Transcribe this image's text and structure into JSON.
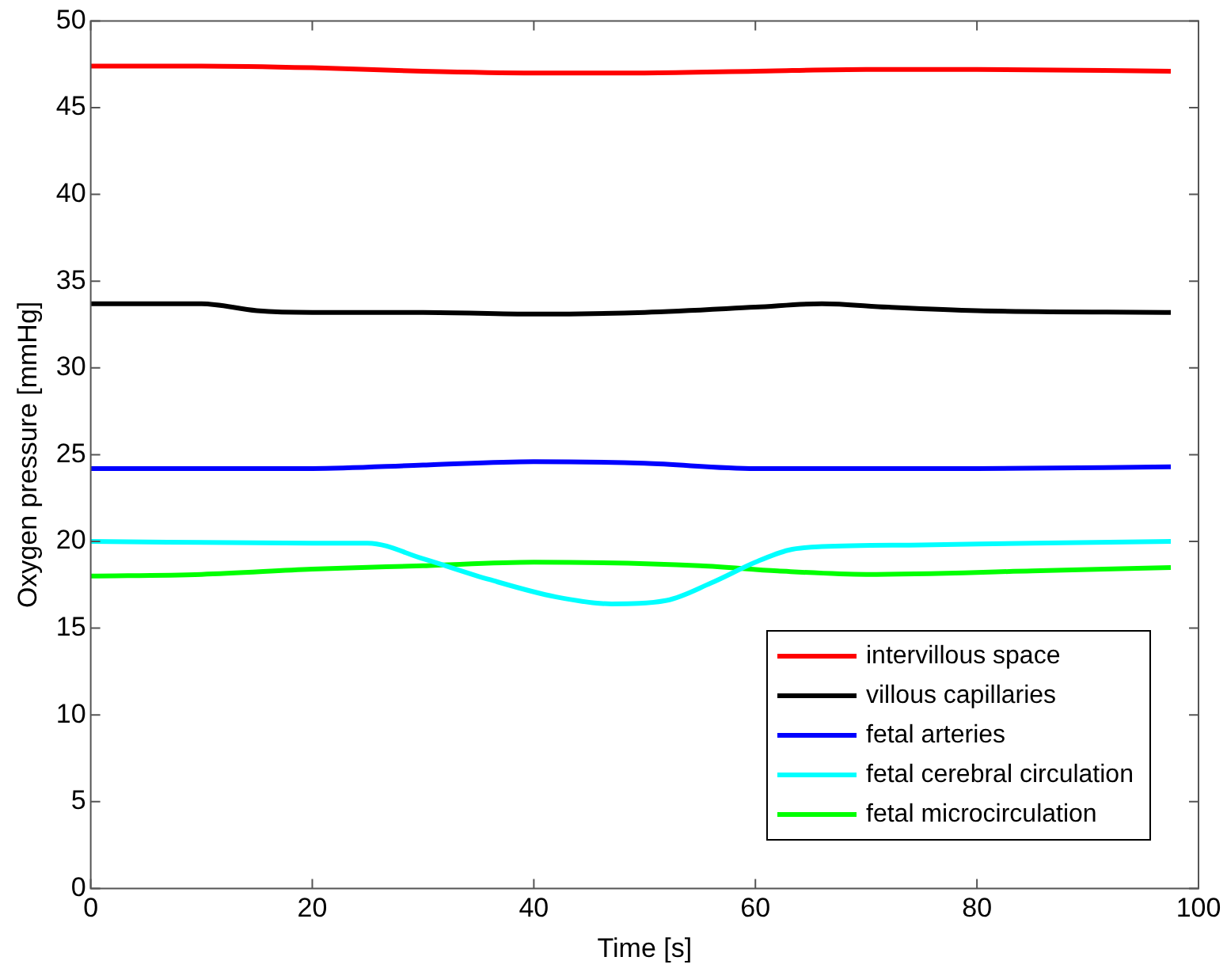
{
  "chart_data": {
    "type": "line",
    "xlabel": "Time [s]",
    "ylabel": "Oxygen pressure [mmHg]",
    "xlim": [
      0,
      100
    ],
    "xticks": [
      0,
      20,
      40,
      60,
      80,
      100
    ],
    "ylim": [
      0,
      50
    ],
    "yticks": [
      0,
      5,
      10,
      15,
      20,
      25,
      30,
      35,
      40,
      45,
      50
    ],
    "grid": false,
    "legend": "bottom right",
    "marker": "none",
    "line_style": "solid",
    "series": [
      {
        "name": "intervillous space",
        "color": "#ff0000",
        "x": [
          0,
          10,
          20,
          30,
          40,
          50,
          60,
          70,
          80,
          97.5
        ],
        "values": [
          47.4,
          47.4,
          47.3,
          47.1,
          47.0,
          47.0,
          47.1,
          47.2,
          47.2,
          47.1
        ]
      },
      {
        "name": "villous capillaries",
        "color": "#000000",
        "x": [
          0,
          10,
          15,
          20,
          30,
          40,
          50,
          60,
          66,
          72,
          80,
          97.5
        ],
        "values": [
          33.7,
          33.7,
          33.3,
          33.2,
          33.2,
          33.1,
          33.2,
          33.5,
          33.7,
          33.5,
          33.3,
          33.2
        ]
      },
      {
        "name": "fetal arteries",
        "color": "#0000ff",
        "x": [
          0,
          20,
          30,
          40,
          50,
          60,
          80,
          97.5
        ],
        "values": [
          24.2,
          24.2,
          24.4,
          24.6,
          24.5,
          24.2,
          24.2,
          24.3
        ]
      },
      {
        "name": "fetal cerebral circulation",
        "color": "#00ffff",
        "x": [
          0,
          20,
          25,
          30,
          36,
          42,
          47,
          52,
          56,
          60,
          63,
          66,
          75,
          85,
          97.5
        ],
        "values": [
          20.0,
          19.9,
          19.9,
          19.0,
          17.8,
          16.8,
          16.4,
          16.6,
          17.6,
          18.8,
          19.5,
          19.7,
          19.8,
          19.9,
          20.0
        ]
      },
      {
        "name": "fetal microcirculation",
        "color": "#00ff00",
        "x": [
          0,
          10,
          20,
          30,
          40,
          55,
          62,
          70,
          85,
          97.5
        ],
        "values": [
          18.0,
          18.1,
          18.4,
          18.6,
          18.8,
          18.6,
          18.3,
          18.1,
          18.3,
          18.5
        ]
      }
    ]
  }
}
